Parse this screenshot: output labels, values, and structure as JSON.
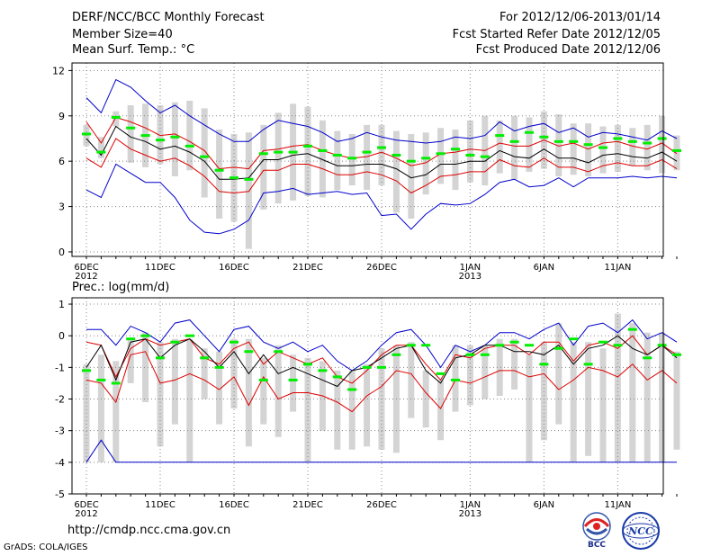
{
  "header": {
    "title": "DERF/NCC/BCC Monthly Forecast",
    "member_size": "Member Size=40",
    "variable": "Mean Surf. Temp.: °C",
    "period": "For 2012/12/06-2013/01/14",
    "started": "Fcst Started Refer Date 2012/12/05",
    "produced": "Fcst Produced Date 2012/12/06"
  },
  "footer": {
    "url": "http://cmdp.ncc.cma.gov.cn",
    "grads": "GrADS: COLA/IGES",
    "logo_bcc": "BCC",
    "logo_ncc": "NCC"
  },
  "colors": {
    "box": "#d4d4d4",
    "median": "#00ee00",
    "mean": "#000000",
    "std": "#dd0000",
    "envelope": "#0000cc",
    "grid": "#888888"
  },
  "chart_data": [
    {
      "type": "line",
      "title": "",
      "ylabel": "Mean Surf. Temp.: °C",
      "ylim": [
        -0.3,
        12.5
      ],
      "yticks": [
        0,
        3,
        6,
        9,
        12
      ],
      "xticks": [
        {
          "day": 0,
          "label": "6DEC",
          "sub": "2012"
        },
        {
          "day": 5,
          "label": "11DEC",
          "sub": ""
        },
        {
          "day": 10,
          "label": "16DEC",
          "sub": ""
        },
        {
          "day": 15,
          "label": "21DEC",
          "sub": ""
        },
        {
          "day": 20,
          "label": "26DEC",
          "sub": ""
        },
        {
          "day": 26,
          "label": "1JAN",
          "sub": "2013"
        },
        {
          "day": 31,
          "label": "6JAN",
          "sub": ""
        },
        {
          "day": 36,
          "label": "11JAN",
          "sub": ""
        }
      ],
      "series": [
        {
          "name": "max",
          "values": [
            10.2,
            9.2,
            11.4,
            10.9,
            10.0,
            9.2,
            9.7,
            9.0,
            8.4,
            7.8,
            7.3,
            7.3,
            8.1,
            8.7,
            8.5,
            8.3,
            7.9,
            7.3,
            7.5,
            7.9,
            7.6,
            7.4,
            7.3,
            7.2,
            7.3,
            7.6,
            7.5,
            7.7,
            8.6,
            8.0,
            8.3,
            8.5,
            7.9,
            8.2,
            7.6,
            7.9,
            7.8,
            7.6,
            7.4,
            8.0,
            7.5
          ]
        },
        {
          "name": "mean_plus_std",
          "values": [
            8.6,
            7.2,
            8.9,
            8.6,
            8.2,
            7.7,
            7.8,
            7.3,
            6.7,
            5.5,
            5.6,
            5.5,
            6.7,
            6.8,
            7.0,
            7.1,
            6.7,
            6.4,
            6.2,
            6.3,
            6.6,
            6.2,
            5.7,
            5.9,
            6.5,
            6.6,
            6.8,
            6.7,
            7.2,
            7.0,
            7.0,
            7.4,
            7.0,
            7.2,
            6.8,
            7.2,
            7.3,
            7.0,
            6.8,
            7.2,
            6.5
          ]
        },
        {
          "name": "mean",
          "values": [
            7.5,
            6.4,
            8.3,
            7.6,
            7.3,
            6.8,
            7.0,
            6.6,
            6.0,
            4.8,
            4.8,
            4.9,
            6.1,
            6.1,
            6.4,
            6.5,
            6.1,
            5.7,
            5.7,
            5.8,
            5.8,
            5.5,
            4.9,
            5.1,
            5.8,
            5.8,
            6.0,
            6.0,
            6.7,
            6.3,
            6.2,
            6.8,
            6.2,
            6.2,
            5.9,
            6.4,
            6.5,
            6.3,
            6.2,
            6.6,
            6.0
          ]
        },
        {
          "name": "mean_minus_std",
          "values": [
            6.2,
            5.6,
            7.5,
            6.8,
            6.4,
            6.0,
            6.2,
            5.7,
            5.0,
            4.0,
            3.9,
            4.0,
            5.4,
            5.4,
            5.8,
            5.8,
            5.5,
            5.1,
            5.1,
            5.3,
            5.1,
            4.7,
            3.9,
            4.4,
            5.0,
            5.1,
            5.3,
            5.3,
            6.1,
            5.7,
            5.6,
            6.2,
            5.6,
            5.6,
            5.3,
            5.7,
            5.9,
            5.7,
            5.7,
            6.1,
            5.5
          ]
        },
        {
          "name": "min",
          "values": [
            4.1,
            3.6,
            5.8,
            5.2,
            4.6,
            4.6,
            3.6,
            2.1,
            1.3,
            1.2,
            1.5,
            2.1,
            3.9,
            4.0,
            4.2,
            3.8,
            3.9,
            4.0,
            3.8,
            3.9,
            2.4,
            2.5,
            1.5,
            2.5,
            3.2,
            3.1,
            3.2,
            3.8,
            4.6,
            4.8,
            4.3,
            4.4,
            4.9,
            4.3,
            4.9,
            4.9,
            4.9,
            5.0,
            4.9,
            5.0,
            4.9
          ]
        }
      ],
      "boxes": [
        [
          7.0,
          8.4
        ],
        [
          6.2,
          7.6
        ],
        [
          8.3,
          9.3
        ],
        [
          5.9,
          9.7
        ],
        [
          5.6,
          9.8
        ],
        [
          5.8,
          9.7
        ],
        [
          5.0,
          9.9
        ],
        [
          5.4,
          10.0
        ],
        [
          3.6,
          9.5
        ],
        [
          2.2,
          8.1
        ],
        [
          2.0,
          7.8
        ],
        [
          0.2,
          7.9
        ],
        [
          2.8,
          8.4
        ],
        [
          3.2,
          9.2
        ],
        [
          3.4,
          9.8
        ],
        [
          3.7,
          9.6
        ],
        [
          3.6,
          8.7
        ],
        [
          4.1,
          8.0
        ],
        [
          4.4,
          7.8
        ],
        [
          4.1,
          8.4
        ],
        [
          4.4,
          8.4
        ],
        [
          2.6,
          8.0
        ],
        [
          2.2,
          7.8
        ],
        [
          3.8,
          7.9
        ],
        [
          4.5,
          8.2
        ],
        [
          4.1,
          8.1
        ],
        [
          4.6,
          8.7
        ],
        [
          4.4,
          9.0
        ],
        [
          5.2,
          8.7
        ],
        [
          4.8,
          9.0
        ],
        [
          5.3,
          8.9
        ],
        [
          5.5,
          9.3
        ],
        [
          5.0,
          9.1
        ],
        [
          5.1,
          8.5
        ],
        [
          5.0,
          8.5
        ],
        [
          5.2,
          8.3
        ],
        [
          5.3,
          8.4
        ],
        [
          5.7,
          8.2
        ],
        [
          5.4,
          8.4
        ],
        [
          5.2,
          9.0
        ],
        [
          5.4,
          7.7
        ]
      ],
      "medians": [
        7.8,
        6.6,
        8.9,
        8.2,
        7.7,
        7.4,
        7.6,
        7.0,
        6.3,
        5.4,
        4.9,
        4.8,
        6.5,
        6.6,
        6.6,
        7.0,
        6.7,
        6.4,
        6.2,
        6.6,
        6.9,
        6.4,
        6.0,
        6.2,
        6.5,
        6.8,
        6.4,
        6.3,
        7.7,
        7.3,
        7.9,
        7.6,
        7.3,
        7.3,
        7.1,
        6.9,
        7.5,
        7.3,
        7.2,
        7.5,
        6.7
      ]
    },
    {
      "type": "line",
      "title": "",
      "ylabel": "Prec.: log(mm/d)",
      "ylim": [
        -5,
        1.2
      ],
      "yticks": [
        -5,
        -4,
        -3,
        -2,
        -1,
        0,
        1
      ],
      "xticks": [
        {
          "day": 0,
          "label": "6DEC",
          "sub": "2012"
        },
        {
          "day": 5,
          "label": "11DEC",
          "sub": ""
        },
        {
          "day": 10,
          "label": "16DEC",
          "sub": ""
        },
        {
          "day": 15,
          "label": "21DEC",
          "sub": ""
        },
        {
          "day": 20,
          "label": "26DEC",
          "sub": ""
        },
        {
          "day": 26,
          "label": "1JAN",
          "sub": "2013"
        },
        {
          "day": 31,
          "label": "6JAN",
          "sub": ""
        },
        {
          "day": 36,
          "label": "11JAN",
          "sub": ""
        }
      ],
      "series": [
        {
          "name": "max",
          "values": [
            0.2,
            0.2,
            -0.3,
            0.3,
            0.1,
            -0.2,
            0.4,
            0.5,
            0.0,
            -0.5,
            0.2,
            0.3,
            -0.2,
            -0.4,
            -0.2,
            -0.5,
            -0.3,
            -0.8,
            -1.1,
            -0.8,
            -0.3,
            0.1,
            0.2,
            -0.3,
            -1.0,
            -0.3,
            -0.5,
            -0.3,
            0.1,
            0.1,
            -0.1,
            0.2,
            0.4,
            -0.3,
            0.3,
            0.4,
            0.1,
            0.5,
            -0.1,
            0.1,
            -0.2
          ]
        },
        {
          "name": "mean_plus_std",
          "values": [
            -0.2,
            -0.3,
            -1.3,
            -0.4,
            -0.1,
            -0.3,
            -0.2,
            -0.1,
            -0.7,
            -0.9,
            -0.4,
            -0.2,
            -0.9,
            -0.5,
            -0.7,
            -0.9,
            -0.7,
            -1.3,
            -1.5,
            -1.1,
            -0.6,
            -0.3,
            -0.3,
            -0.9,
            -1.4,
            -0.6,
            -0.7,
            -0.4,
            -0.3,
            -0.3,
            -0.6,
            -0.2,
            -0.2,
            -0.8,
            -0.3,
            -0.2,
            -0.4,
            0.0,
            -0.6,
            -0.3,
            -0.6
          ]
        },
        {
          "name": "mean",
          "values": [
            -1.0,
            -0.3,
            -1.4,
            -0.2,
            -0.1,
            -0.7,
            -0.3,
            -0.1,
            -0.5,
            -1.0,
            -0.5,
            -1.2,
            -0.6,
            -1.2,
            -1.0,
            -1.2,
            -1.4,
            -1.6,
            -1.1,
            -1.0,
            -0.7,
            -0.4,
            -0.3,
            -1.1,
            -1.5,
            -0.7,
            -0.6,
            -0.3,
            -0.3,
            -0.5,
            -0.5,
            -0.6,
            -0.3,
            -0.9,
            -0.4,
            -0.3,
            0.0,
            -0.4,
            -0.6,
            -0.3,
            -0.7
          ]
        },
        {
          "name": "mean_minus_std",
          "values": [
            -1.4,
            -1.5,
            -2.1,
            -0.6,
            -0.5,
            -1.5,
            -1.4,
            -1.2,
            -1.4,
            -1.7,
            -1.3,
            -2.2,
            -1.3,
            -2.0,
            -1.8,
            -1.8,
            -1.9,
            -2.1,
            -2.4,
            -1.9,
            -1.6,
            -1.1,
            -1.2,
            -1.8,
            -2.3,
            -1.4,
            -1.5,
            -1.3,
            -1.1,
            -1.1,
            -1.3,
            -1.2,
            -1.7,
            -1.4,
            -1.0,
            -1.1,
            -1.3,
            -0.9,
            -1.4,
            -1.1,
            -1.5
          ]
        },
        {
          "name": "min",
          "values": [
            -4.0,
            -3.3,
            -4.0,
            -4.0,
            -4.0,
            -4.0,
            -4.0,
            -4.0,
            -4.0,
            -4.0,
            -4.0,
            -4.0,
            -4.0,
            -4.0,
            -4.0,
            -4.0,
            -4.0,
            -4.0,
            -4.0,
            -4.0,
            -4.0,
            -4.0,
            -4.0,
            -4.0,
            -4.0,
            -4.0,
            -4.0,
            -4.0,
            -4.0,
            -4.0,
            -4.0,
            -4.0,
            -4.0,
            -4.0,
            -4.0,
            -4.0,
            -4.0,
            -4.0,
            -4.0,
            -4.0,
            -4.0
          ]
        }
      ],
      "boxes": [
        [
          -4.0,
          -0.9
        ],
        [
          -4.0,
          -0.6
        ],
        [
          -4.0,
          -0.8
        ],
        [
          -1.5,
          -0.1
        ],
        [
          -2.1,
          0.1
        ],
        [
          -3.5,
          -0.2
        ],
        [
          -2.8,
          -0.1
        ],
        [
          -4.0,
          -0.1
        ],
        [
          -2.0,
          -0.4
        ],
        [
          -2.8,
          -0.5
        ],
        [
          -2.3,
          -0.1
        ],
        [
          -3.5,
          -0.1
        ],
        [
          -2.8,
          -0.7
        ],
        [
          -3.2,
          -0.3
        ],
        [
          -2.4,
          -0.6
        ],
        [
          -4.0,
          -0.7
        ],
        [
          -3.0,
          -0.8
        ],
        [
          -3.6,
          -1.1
        ],
        [
          -3.6,
          -1.1
        ],
        [
          -3.5,
          -0.9
        ],
        [
          -3.6,
          -0.4
        ],
        [
          -3.7,
          -0.3
        ],
        [
          -2.6,
          -0.2
        ],
        [
          -2.9,
          -1.1
        ],
        [
          -3.3,
          -1.4
        ],
        [
          -2.4,
          -0.3
        ],
        [
          -2.2,
          -0.3
        ],
        [
          -2.0,
          -0.3
        ],
        [
          -1.9,
          -0.1
        ],
        [
          -1.7,
          -0.1
        ],
        [
          -4.0,
          -0.6
        ],
        [
          -3.3,
          -0.2
        ],
        [
          -2.8,
          0.4
        ],
        [
          -4.0,
          -0.2
        ],
        [
          -3.8,
          -0.2
        ],
        [
          -4.0,
          -0.4
        ],
        [
          -4.0,
          0.7
        ],
        [
          -4.0,
          0.4
        ],
        [
          -4.0,
          0.1
        ],
        [
          -4.0,
          0.1
        ],
        [
          -3.6,
          -0.5
        ]
      ],
      "medians": [
        -1.1,
        -1.4,
        -1.5,
        -0.1,
        0.0,
        -0.7,
        -0.2,
        0.0,
        -0.7,
        -1.0,
        -0.2,
        -0.5,
        -1.4,
        -0.5,
        -1.4,
        -0.9,
        -1.1,
        -1.3,
        -1.7,
        -1.0,
        -1.0,
        -0.6,
        -0.3,
        -0.3,
        -1.2,
        -1.4,
        -0.6,
        -0.6,
        -0.3,
        -0.2,
        -0.3,
        -0.9,
        -0.4,
        -0.1,
        -0.9,
        -0.2,
        -0.3,
        0.2,
        -0.7,
        -0.3,
        -0.6
      ]
    }
  ]
}
